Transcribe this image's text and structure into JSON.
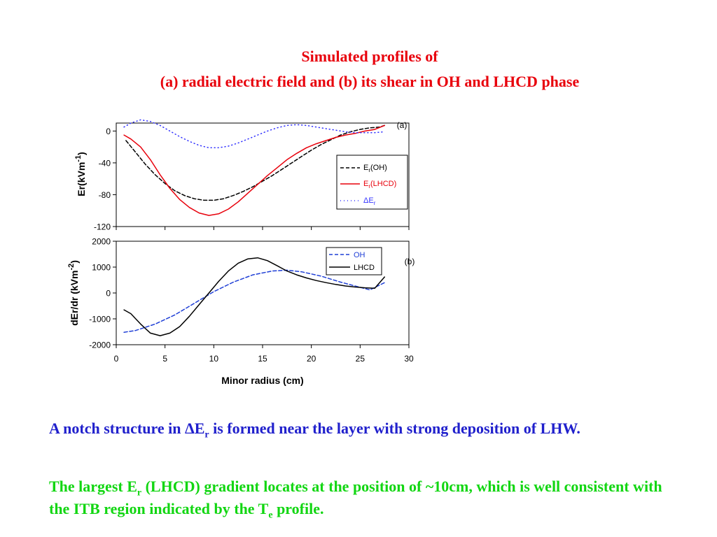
{
  "title": {
    "line1": "Simulated profiles of",
    "line2": "(a) radial electric field and (b) its shear in OH and LHCD phase"
  },
  "chart_data": [
    {
      "type": "line",
      "panel_label": "(a)",
      "ylabel": "Er(kVm",
      "ylabel_exp": "-1",
      "ylabel_close": ")",
      "xlim": [
        0,
        30
      ],
      "ylim": [
        -120,
        10
      ],
      "yticks": [
        0,
        -40,
        -80,
        -120
      ],
      "legend_position": "right",
      "series": [
        {
          "name": "E",
          "name_sub": "r",
          "name_suffix": "(OH)",
          "color": "#000000",
          "style": "dashed",
          "points": [
            [
              1,
              -12
            ],
            [
              2,
              -27
            ],
            [
              3,
              -42
            ],
            [
              4,
              -55
            ],
            [
              5,
              -66
            ],
            [
              6,
              -75
            ],
            [
              7,
              -81
            ],
            [
              8,
              -85
            ],
            [
              9,
              -87
            ],
            [
              10,
              -87
            ],
            [
              11,
              -85
            ],
            [
              12,
              -81
            ],
            [
              13,
              -76
            ],
            [
              14,
              -70
            ],
            [
              15,
              -63
            ],
            [
              16,
              -56
            ],
            [
              17,
              -48
            ],
            [
              18,
              -40
            ],
            [
              19,
              -32
            ],
            [
              20,
              -24
            ],
            [
              21,
              -17
            ],
            [
              22,
              -11
            ],
            [
              23,
              -5
            ],
            [
              24,
              -1
            ],
            [
              25,
              2
            ],
            [
              26,
              4
            ],
            [
              27,
              5
            ],
            [
              27.5,
              7
            ]
          ]
        },
        {
          "name": "E",
          "name_sub": "r",
          "name_suffix": "(LHCD)",
          "color": "#e8000b",
          "style": "solid",
          "points": [
            [
              0.8,
              -5
            ],
            [
              1.5,
              -10
            ],
            [
              2.5,
              -20
            ],
            [
              3.5,
              -36
            ],
            [
              4.5,
              -55
            ],
            [
              5.5,
              -72
            ],
            [
              6.5,
              -86
            ],
            [
              7.5,
              -96
            ],
            [
              8.5,
              -103
            ],
            [
              9.5,
              -106
            ],
            [
              10.5,
              -104
            ],
            [
              11.5,
              -98
            ],
            [
              12.5,
              -89
            ],
            [
              13.5,
              -78
            ],
            [
              14.5,
              -67
            ],
            [
              15.5,
              -56
            ],
            [
              16.5,
              -46
            ],
            [
              17.5,
              -36
            ],
            [
              18.5,
              -28
            ],
            [
              19.5,
              -21
            ],
            [
              20.5,
              -16
            ],
            [
              21.5,
              -12
            ],
            [
              22.5,
              -8
            ],
            [
              23.5,
              -5
            ],
            [
              24.5,
              -3
            ],
            [
              25.5,
              0
            ],
            [
              26.5,
              2
            ],
            [
              27.5,
              7
            ]
          ]
        },
        {
          "name": "ΔE",
          "name_sub": "r",
          "name_suffix": "",
          "color": "#3333ff",
          "style": "dotted",
          "points": [
            [
              0.8,
              5
            ],
            [
              1.5,
              10
            ],
            [
              2.5,
              14
            ],
            [
              3.5,
              12
            ],
            [
              4.5,
              7
            ],
            [
              5.5,
              0
            ],
            [
              6.5,
              -7
            ],
            [
              7.5,
              -13
            ],
            [
              8.5,
              -18
            ],
            [
              9.5,
              -21
            ],
            [
              10.5,
              -21
            ],
            [
              11.5,
              -19
            ],
            [
              12.5,
              -15
            ],
            [
              13.5,
              -10
            ],
            [
              14.5,
              -5
            ],
            [
              15.5,
              0
            ],
            [
              16.5,
              4
            ],
            [
              17.5,
              7
            ],
            [
              18.5,
              8
            ],
            [
              19.5,
              7
            ],
            [
              20.5,
              5
            ],
            [
              21.5,
              3
            ],
            [
              22.5,
              1
            ],
            [
              23.5,
              -1
            ],
            [
              24.5,
              -2
            ],
            [
              25.5,
              -2
            ],
            [
              26.5,
              -2
            ],
            [
              27.5,
              -1
            ]
          ]
        }
      ]
    },
    {
      "type": "line",
      "panel_label": "(b)",
      "ylabel": "dEr/dr (kVm",
      "ylabel_exp": "-2",
      "ylabel_close": ")",
      "xlabel": "Minor radius (cm)",
      "xlim": [
        0,
        30
      ],
      "ylim": [
        -2000,
        2000
      ],
      "xticks": [
        0,
        5,
        10,
        15,
        20,
        25,
        30
      ],
      "yticks": [
        2000,
        1000,
        0,
        -1000,
        -2000
      ],
      "legend_position": "top-right",
      "series": [
        {
          "name": "OH",
          "color": "#1f3fd6",
          "style": "dashed",
          "points": [
            [
              0.8,
              -1520
            ],
            [
              2,
              -1450
            ],
            [
              4,
              -1200
            ],
            [
              6,
              -850
            ],
            [
              8,
              -400
            ],
            [
              10,
              50
            ],
            [
              12,
              420
            ],
            [
              14,
              700
            ],
            [
              16,
              850
            ],
            [
              17.5,
              880
            ],
            [
              19,
              820
            ],
            [
              21,
              650
            ],
            [
              23,
              420
            ],
            [
              25,
              220
            ],
            [
              26,
              120
            ],
            [
              27.5,
              400
            ]
          ]
        },
        {
          "name": "LHCD",
          "color": "#000000",
          "style": "solid",
          "points": [
            [
              0.8,
              -650
            ],
            [
              1.5,
              -800
            ],
            [
              2.5,
              -1200
            ],
            [
              3.5,
              -1550
            ],
            [
              4.5,
              -1650
            ],
            [
              5.5,
              -1550
            ],
            [
              6.5,
              -1300
            ],
            [
              7.5,
              -900
            ],
            [
              8.5,
              -450
            ],
            [
              9.5,
              0
            ],
            [
              10.5,
              450
            ],
            [
              11.5,
              850
            ],
            [
              12.5,
              1150
            ],
            [
              13.5,
              1320
            ],
            [
              14.5,
              1360
            ],
            [
              15.5,
              1250
            ],
            [
              16.5,
              1050
            ],
            [
              17.5,
              850
            ],
            [
              18.5,
              700
            ],
            [
              19.5,
              580
            ],
            [
              20.5,
              480
            ],
            [
              21.5,
              400
            ],
            [
              22.5,
              330
            ],
            [
              23.5,
              270
            ],
            [
              24.5,
              230
            ],
            [
              25.5,
              200
            ],
            [
              26.5,
              180
            ],
            [
              27.5,
              620
            ]
          ]
        }
      ]
    }
  ],
  "notes": {
    "p1_a": "A notch structure in ",
    "p1_b": "ΔE",
    "p1_sub": "r",
    "p1_c": " is formed near the layer with strong deposition of LHW.",
    "p2_a": "The largest E",
    "p2_sub1": "r",
    "p2_b": " (LHCD) gradient locates at the position of ~10cm, which is well consistent with the ITB region indicated by the T",
    "p2_sub2": "e",
    "p2_c": " profile."
  }
}
